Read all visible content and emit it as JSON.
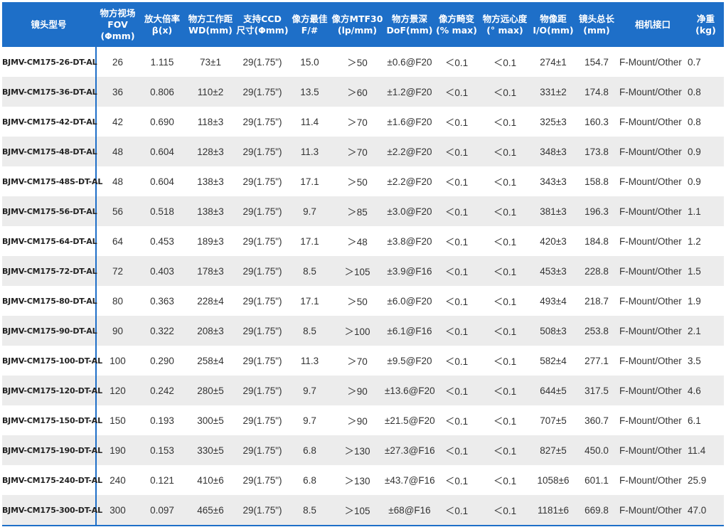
{
  "colors": {
    "header_bg": "#1e6fc8",
    "header_text": "#ffffff",
    "row_alt": "#ececec",
    "accent_line": "#1e6fc8"
  },
  "headers": [
    [
      "镜头型号"
    ],
    [
      "物方视场",
      "FOV",
      "(Φmm)"
    ],
    [
      "放大倍率",
      "β(x)"
    ],
    [
      "物方工作距",
      "WD(mm)"
    ],
    [
      "支持CCD",
      "尺寸(Φmm)"
    ],
    [
      "像方最佳",
      "F/#"
    ],
    [
      "像方MTF30",
      "(lp/mm)"
    ],
    [
      "物方景深",
      "DoF(mm)"
    ],
    [
      "像方畸变",
      "(% max)"
    ],
    [
      "物方远心度",
      "(° max)"
    ],
    [
      "物像距",
      "I/O(mm)"
    ],
    [
      "镜头总长",
      "(mm)"
    ],
    [
      "相机接口"
    ],
    [
      "净重",
      "(kg)"
    ]
  ],
  "rows": [
    [
      "BJMV-CM175-26-DT-AL",
      "26",
      "1.115",
      "73±1",
      "29(1.75\")",
      "15.0",
      "＞50",
      "±0.6@F20",
      "＜0.1",
      "＜0.1",
      "274±1",
      "154.7",
      "F-Mount/Other",
      "0.7"
    ],
    [
      "BJMV-CM175-36-DT-AL",
      "36",
      "0.806",
      "110±2",
      "29(1.75\")",
      "13.5",
      "＞60",
      "±1.2@F20",
      "＜0.1",
      "＜0.1",
      "331±2",
      "174.8",
      "F-Mount/Other",
      "0.8"
    ],
    [
      "BJMV-CM175-42-DT-AL",
      "42",
      "0.690",
      "118±3",
      "29(1.75\")",
      "11.4",
      "＞70",
      "±1.6@F20",
      "＜0.1",
      "＜0.1",
      "325±3",
      "160.3",
      "F-Mount/Other",
      "0.8"
    ],
    [
      "BJMV-CM175-48-DT-AL",
      "48",
      "0.604",
      "128±3",
      "29(1.75\")",
      "11.3",
      "＞70",
      "±2.2@F20",
      "＜0.1",
      "＜0.1",
      "348±3",
      "173.8",
      "F-Mount/Other",
      "0.9"
    ],
    [
      "BJMV-CM175-48S-DT-AL",
      "48",
      "0.604",
      "138±3",
      "29(1.75\")",
      "17.1",
      "＞50",
      "±2.2@F20",
      "＜0.1",
      "＜0.1",
      "343±3",
      "158.8",
      "F-Mount/Other",
      "0.9"
    ],
    [
      "BJMV-CM175-56-DT-AL",
      "56",
      "0.518",
      "138±3",
      "29(1.75\")",
      "9.7",
      "＞85",
      "±3.0@F20",
      "＜0.1",
      "＜0.1",
      "381±3",
      "196.3",
      "F-Mount/Other",
      "1.1"
    ],
    [
      "BJMV-CM175-64-DT-AL",
      "64",
      "0.453",
      "189±3",
      "29(1.75\")",
      "17.1",
      "＞48",
      "±3.8@F20",
      "＜0.1",
      "＜0.1",
      "420±3",
      "184.8",
      "F-Mount/Other",
      "1.2"
    ],
    [
      "BJMV-CM175-72-DT-AL",
      "72",
      "0.403",
      "178±3",
      "29(1.75\")",
      "8.5",
      "＞105",
      "±3.9@F16",
      "＜0.1",
      "＜0.1",
      "453±3",
      "228.8",
      "F-Mount/Other",
      "1.5"
    ],
    [
      "BJMV-CM175-80-DT-AL",
      "80",
      "0.363",
      "228±4",
      "29(1.75\")",
      "17.1",
      "＞50",
      "±6.0@F20",
      "＜0.1",
      "＜0.1",
      "493±4",
      "218.7",
      "F-Mount/Other",
      "1.9"
    ],
    [
      "BJMV-CM175-90-DT-AL",
      "90",
      "0.322",
      "208±3",
      "29(1.75\")",
      "8.5",
      "＞100",
      "±6.1@F16",
      "＜0.1",
      "＜0.1",
      "508±3",
      "253.8",
      "F-Mount/Other",
      "2.1"
    ],
    [
      "BJMV-CM175-100-DT-AL",
      "100",
      "0.290",
      "258±4",
      "29(1.75\")",
      "11.3",
      "＞70",
      "±9.5@F20",
      "＜0.1",
      "＜0.1",
      "582±4",
      "277.1",
      "F-Mount/Other",
      "3.5"
    ],
    [
      "BJMV-CM175-120-DT-AL",
      "120",
      "0.242",
      "280±5",
      "29(1.75\")",
      "9.7",
      "＞90",
      "±13.6@F20",
      "＜0.1",
      "＜0.1",
      "644±5",
      "317.5",
      "F-Mount/Other",
      "4.6"
    ],
    [
      "BJMV-CM175-150-DT-AL",
      "150",
      "0.193",
      "300±5",
      "29(1.75\")",
      "9.7",
      "＞90",
      "±21.5@F20",
      "＜0.1",
      "＜0.1",
      "707±5",
      "360.7",
      "F-Mount/Other",
      "6.1"
    ],
    [
      "BJMV-CM175-190-DT-AL",
      "190",
      "0.153",
      "330±5",
      "29(1.75\")",
      "6.8",
      "＞130",
      "±27.3@F16",
      "＜0.1",
      "＜0.1",
      "827±5",
      "450.0",
      "F-Mount/Other",
      "11.4"
    ],
    [
      "BJMV-CM175-240-DT-AL",
      "240",
      "0.121",
      "410±6",
      "29(1.75\")",
      "6.8",
      "＞130",
      "±43.7@F16",
      "＜0.1",
      "＜0.1",
      "1058±6",
      "601.1",
      "F-Mount/Other",
      "25.9"
    ],
    [
      "BJMV-CM175-300-DT-AL",
      "300",
      "0.097",
      "465±6",
      "29(1.75\")",
      "8.5",
      "＞105",
      "±68@F16",
      "＜0.1",
      "＜0.1",
      "1181±6",
      "669.8",
      "F-Mount/Other",
      "47.0"
    ]
  ]
}
